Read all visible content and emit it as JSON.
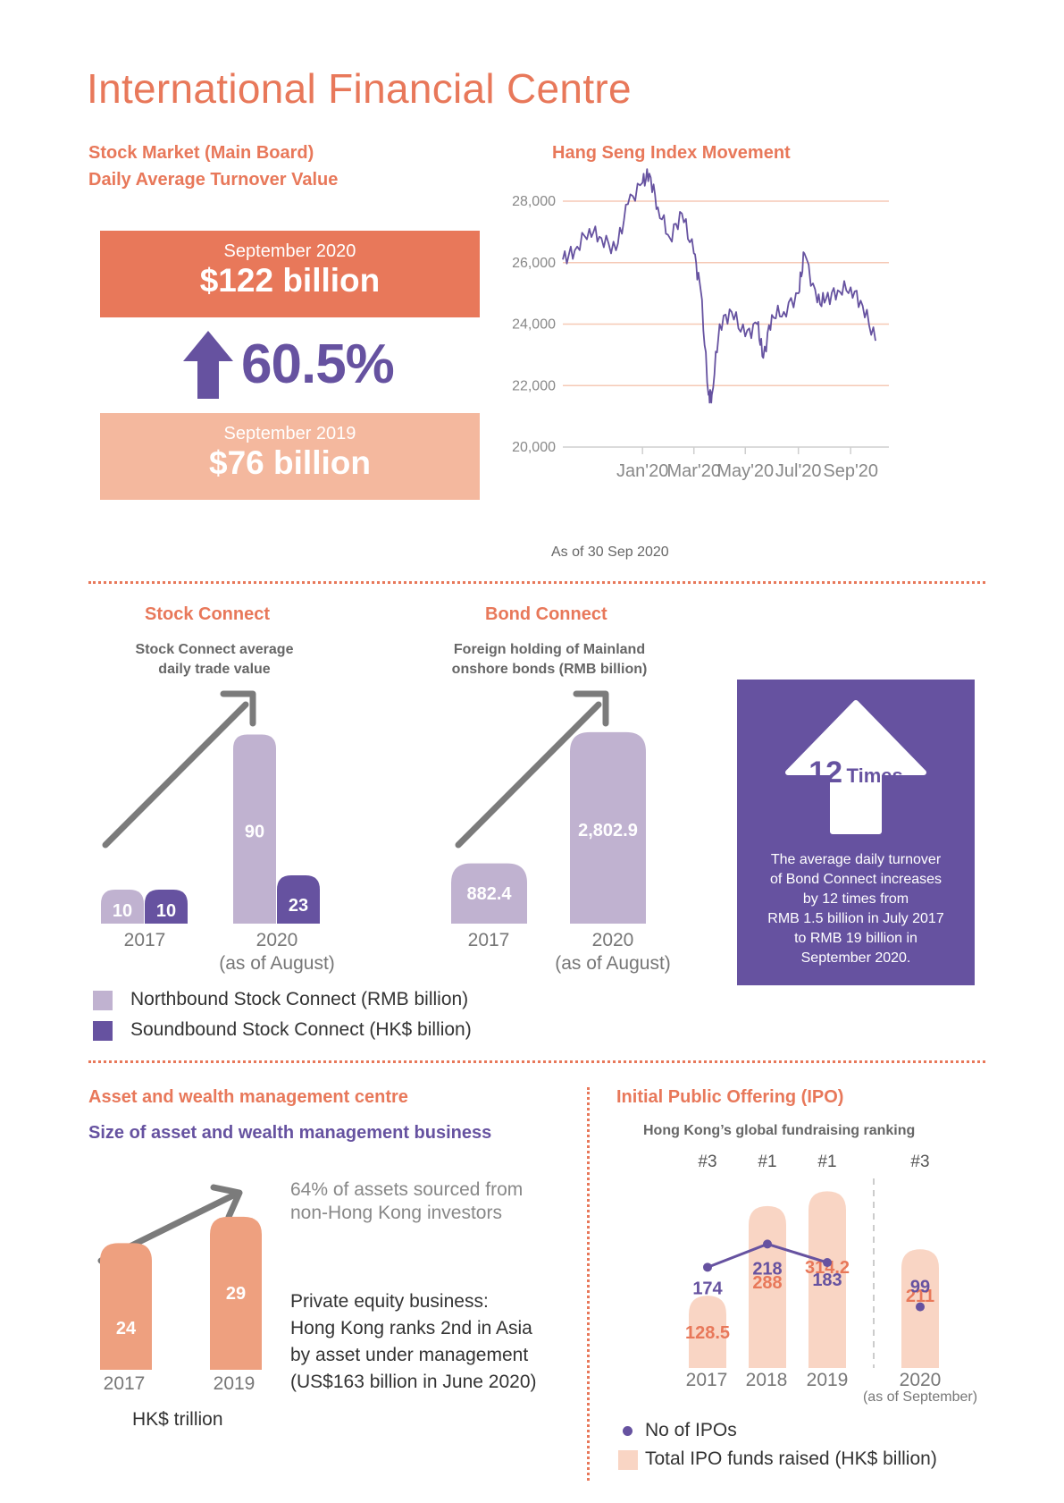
{
  "page_title": "International Financial Centre",
  "turnover": {
    "heading_line1": "Stock Market (Main Board)",
    "heading_line2": "Daily Average Turnover Value",
    "current_month": "September 2020",
    "current_value": "$122 billion",
    "change": "60.5%",
    "previous_month": "September 2019",
    "previous_value": "$76 billion"
  },
  "hsi": {
    "heading": "Hang Seng Index Movement",
    "caption": "As of 30 Sep 2020"
  },
  "stock_connect": {
    "heading": "Stock Connect",
    "subtitle_line1": "Stock Connect average",
    "subtitle_line2": "daily trade value",
    "year1": "2017",
    "year2": "2020",
    "year2_note": "(as of August)",
    "legend_north": "Northbound Stock Connect (RMB billion)",
    "legend_south": "Soundbound Stock Connect (HK$ billion)"
  },
  "bond_connect": {
    "heading": "Bond Connect",
    "subtitle_line1": "Foreign holding of Mainland",
    "subtitle_line2": "onshore bonds (RMB billion)",
    "year1": "2017",
    "year2": "2020",
    "year2_note": "(as of August)"
  },
  "bond_turnover_box": {
    "badge_num": "12",
    "badge_word": "Times",
    "lines": [
      "The average daily turnover",
      "of Bond Connect increases",
      "by 12 times from",
      "RMB 1.5 billion in July 2017",
      "to RMB 19 billion in",
      "September 2020."
    ]
  },
  "asset": {
    "heading": "Asset and wealth management centre",
    "subheading": "Size of asset and wealth management business",
    "note_line1": "64% of assets sourced from",
    "note_line2": "non-Hong Kong investors",
    "pe_lines": [
      "Private equity business:",
      "Hong Kong ranks 2nd in Asia",
      "by asset under management",
      "(US$163 billion in June 2020)"
    ],
    "year1": "2017",
    "year2": "2019",
    "unit": "HK$ trillion"
  },
  "ipo": {
    "heading": "Initial Public Offering (IPO)",
    "subtitle": "Hong Kong’s global fundraising ranking",
    "ranks": [
      "#3",
      "#1",
      "#1",
      "#3"
    ],
    "years": [
      "2017",
      "2018",
      "2019",
      "2020"
    ],
    "year_note": "(as of September)",
    "legend_ipos": "No of IPOs",
    "legend_funds": "Total IPO funds raised (HK$ billion)"
  },
  "colors": {
    "orange": "#e8785a",
    "light_orange": "#f4b89e",
    "purple": "#6652a0",
    "light_purple": "#c0b2d0",
    "peach": "#f9d5c4",
    "asset_bar": "#eea07f",
    "arrow_grey": "#7b7b7b"
  },
  "chart_data": [
    {
      "type": "line",
      "title": "Hang Seng Index Movement",
      "y_ticks": [
        20000,
        22000,
        24000,
        26000,
        28000
      ],
      "ylim": [
        20000,
        29000
      ],
      "x_ticks": [
        "Jan'20",
        "Mar'20",
        "May'20",
        "Jul'20",
        "Sep'20"
      ],
      "grid": "horizontal",
      "series": [
        {
          "x": [
            "2019-10-01",
            "2019-10-15",
            "2019-11-01",
            "2019-11-15",
            "2019-12-02",
            "2019-12-16",
            "2020-01-02",
            "2020-01-10",
            "2020-01-20",
            "2020-02-03",
            "2020-02-17",
            "2020-03-02",
            "2020-03-10",
            "2020-03-19",
            "2020-03-23",
            "2020-04-01",
            "2020-04-15",
            "2020-05-01",
            "2020-05-15",
            "2020-05-22",
            "2020-06-01",
            "2020-06-15",
            "2020-07-02",
            "2020-07-09",
            "2020-07-24",
            "2020-08-03",
            "2020-08-17",
            "2020-09-01",
            "2020-09-15",
            "2020-09-30"
          ],
          "values": [
            26100,
            26400,
            27100,
            26800,
            26400,
            27900,
            28600,
            28900,
            27800,
            26800,
            27600,
            26300,
            25100,
            21700,
            21700,
            24000,
            24400,
            23600,
            24000,
            22900,
            24300,
            24400,
            25000,
            26300,
            24700,
            24800,
            25100,
            25200,
            24600,
            23460
          ]
        }
      ]
    },
    {
      "type": "bar",
      "title": "Stock Connect average daily trade value",
      "categories": [
        "2017",
        "2020 (as of August)"
      ],
      "series": [
        {
          "name": "Northbound Stock Connect (RMB billion)",
          "values": [
            10,
            90
          ]
        },
        {
          "name": "Soundbound Stock Connect (HK$ billion)",
          "values": [
            10,
            23
          ]
        }
      ]
    },
    {
      "type": "bar",
      "title": "Foreign holding of Mainland onshore bonds (RMB billion)",
      "categories": [
        "2017",
        "2020 (as of August)"
      ],
      "values": [
        882.4,
        2802.9
      ],
      "labels": [
        "882.4",
        "2,802.9"
      ]
    },
    {
      "type": "bar",
      "title": "Size of asset and wealth management business",
      "categories": [
        "2017",
        "2019"
      ],
      "values": [
        24,
        29
      ],
      "unit": "HK$ trillion"
    },
    {
      "type": "bar",
      "title": "Hong Kong’s global fundraising ranking",
      "categories": [
        "2017",
        "2018",
        "2019",
        "2020"
      ],
      "series": [
        {
          "name": "Total IPO funds raised (HK$ billion)",
          "values": [
            128.5,
            288,
            314.2,
            211
          ],
          "labels": [
            "128.5",
            "288",
            "314.2",
            "211"
          ]
        },
        {
          "name": "No of IPOs",
          "values": [
            174,
            218,
            183,
            99
          ]
        }
      ]
    }
  ]
}
